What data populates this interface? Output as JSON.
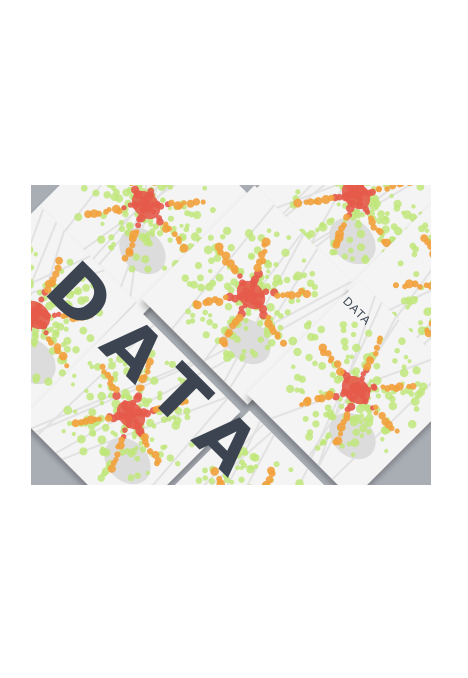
{
  "artwork": {
    "big_text": "DATA",
    "small_text": "DATA",
    "background_color": "#a9aeb5",
    "text_color": "#3b4450",
    "card_color": "#f4f4f4",
    "heat_colors": [
      "#e65a4a",
      "#f2a13c",
      "#bfe67a"
    ]
  }
}
